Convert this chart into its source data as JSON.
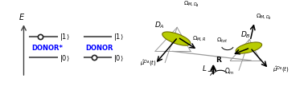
{
  "bg_color": "#ffffff",
  "left_panel": {
    "e_label": "E",
    "donor_star_label": "DONOR*",
    "donor_label": "DONOR",
    "donor_star_color": "#0000ff",
    "donor_color": "#0000ff",
    "axis_color": "#404040",
    "line_color": "#606060",
    "dot_color": "#202020"
  },
  "right_panel": {
    "ellipse_color": "#b8cc00",
    "ellipse_edge": "#707000",
    "arrow_color": "#000000",
    "gray_color": "#999999"
  }
}
